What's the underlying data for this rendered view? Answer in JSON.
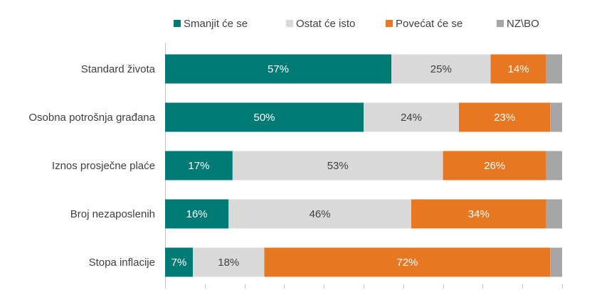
{
  "chart_data": {
    "type": "bar",
    "orientation": "horizontal",
    "stacked": "100%",
    "legend_position": "top",
    "grid": "vertical tick marks",
    "categories": [
      "Standard života",
      "Osobna potrošnja građana",
      "Iznos prosječne plaće",
      "Broj nezaposlenih",
      "Stopa inflacije"
    ],
    "series": [
      {
        "name": "Smanjit će se",
        "color": "#007A74",
        "label_color": "#ffffff",
        "values": [
          57,
          50,
          17,
          16,
          7
        ],
        "labels": [
          "57%",
          "50%",
          "17%",
          "16%",
          "7%"
        ]
      },
      {
        "name": "Ostat će isto",
        "color": "#D9D9D9",
        "label_color": "#404040",
        "values": [
          25,
          24,
          53,
          46,
          18
        ],
        "labels": [
          "25%",
          "24%",
          "53%",
          "46%",
          "18%"
        ]
      },
      {
        "name": "Povećat će se",
        "color": "#E87722",
        "label_color": "#ffffff",
        "values": [
          14,
          23,
          26,
          34,
          72
        ],
        "labels": [
          "14%",
          "23%",
          "26%",
          "34%",
          "72%"
        ]
      },
      {
        "name": "NZ\\BO",
        "color": "#A6A6A6",
        "label_color": "#404040",
        "values": [
          4,
          3,
          4,
          4,
          3
        ],
        "labels": [
          "",
          "",
          "",
          "",
          ""
        ]
      }
    ],
    "xlim": [
      0,
      100
    ]
  }
}
